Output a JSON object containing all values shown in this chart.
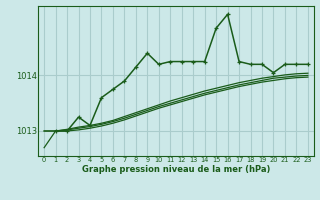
{
  "bg_color": "#cce8e8",
  "grid_color": "#aacccc",
  "line_color": "#1a5c1a",
  "title": "Graphe pression niveau de la mer (hPa)",
  "ylabel_ticks": [
    1013,
    1014
  ],
  "x_labels": [
    "0",
    "1",
    "2",
    "3",
    "4",
    "5",
    "6",
    "7",
    "8",
    "9",
    "10",
    "11",
    "12",
    "13",
    "14",
    "15",
    "16",
    "17",
    "18",
    "19",
    "20",
    "21",
    "22",
    "23"
  ],
  "xlim": [
    -0.5,
    23.5
  ],
  "ylim": [
    1012.55,
    1015.25
  ],
  "series_main": [
    null,
    1013.0,
    1013.0,
    1013.25,
    1013.1,
    1013.6,
    1013.75,
    1013.9,
    1014.15,
    1014.4,
    1014.2,
    1014.25,
    1014.25,
    1014.25,
    1014.25,
    1014.85,
    1015.1,
    1014.25,
    1014.2,
    1014.2,
    1014.05,
    1014.2,
    1014.2,
    1014.2
  ],
  "series_line1": [
    1013.0,
    1013.0,
    1013.03,
    1013.07,
    1013.1,
    1013.14,
    1013.19,
    1013.26,
    1013.33,
    1013.4,
    1013.47,
    1013.54,
    1013.6,
    1013.66,
    1013.72,
    1013.77,
    1013.82,
    1013.87,
    1013.91,
    1013.95,
    1013.98,
    1014.01,
    1014.03,
    1014.04
  ],
  "series_line2": [
    1013.0,
    1013.0,
    1013.02,
    1013.05,
    1013.08,
    1013.12,
    1013.17,
    1013.23,
    1013.3,
    1013.37,
    1013.44,
    1013.5,
    1013.56,
    1013.62,
    1013.68,
    1013.73,
    1013.78,
    1013.83,
    1013.87,
    1013.91,
    1013.95,
    1013.97,
    1013.99,
    1014.0
  ],
  "series_line3": [
    1012.7,
    1013.0,
    1013.0,
    1013.02,
    1013.05,
    1013.09,
    1013.14,
    1013.2,
    1013.27,
    1013.34,
    1013.41,
    1013.47,
    1013.53,
    1013.59,
    1013.65,
    1013.7,
    1013.75,
    1013.8,
    1013.84,
    1013.88,
    1013.91,
    1013.94,
    1013.96,
    1013.97
  ]
}
